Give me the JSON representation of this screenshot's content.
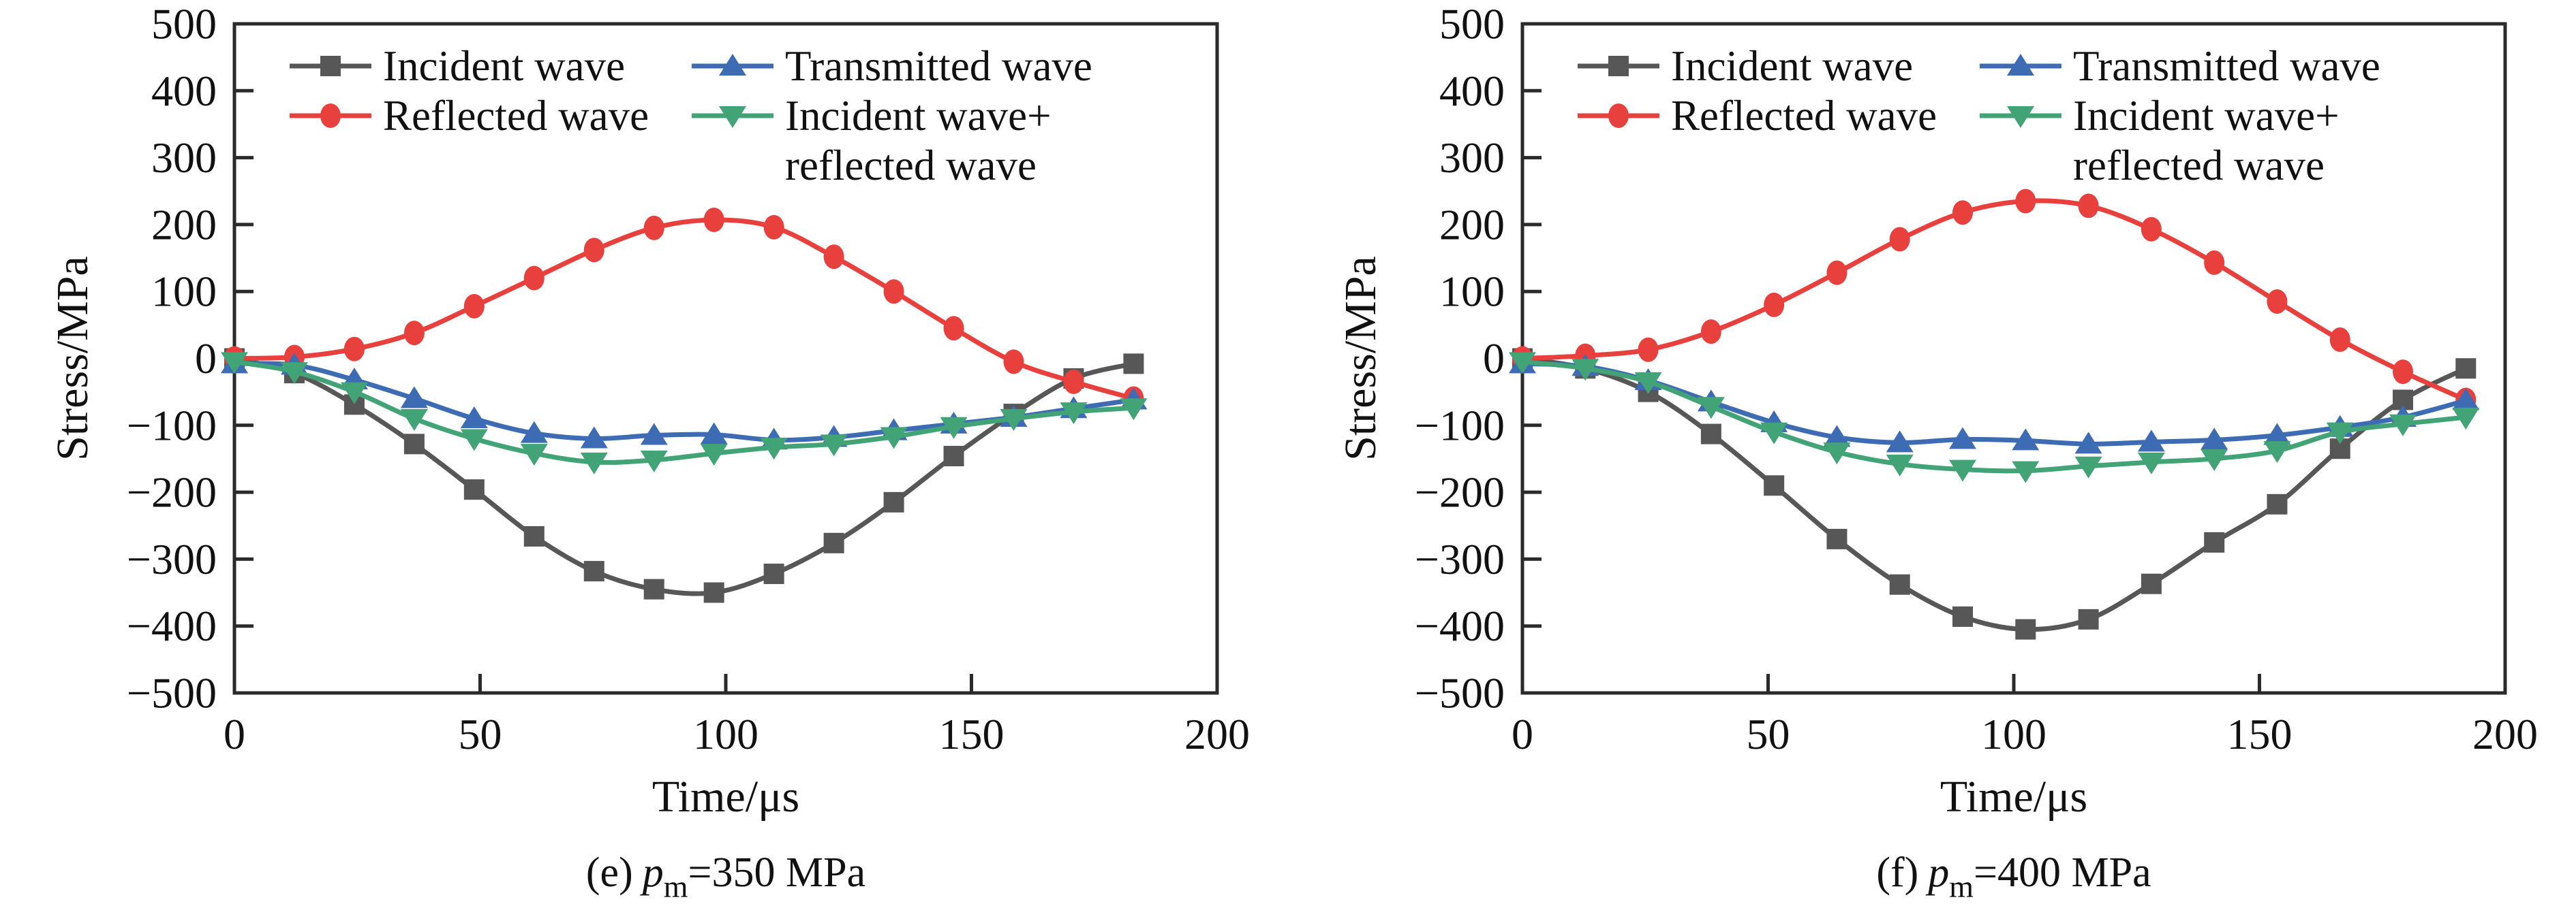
{
  "figure": {
    "background": "#ffffff",
    "frame_color": "#2a2a2a"
  },
  "chart_data": [
    {
      "type": "line",
      "caption": {
        "prefix": "(e)",
        "symbol": "p",
        "subscript": "m",
        "suffix": "=350 MPa"
      },
      "xlabel": "Time/μs",
      "ylabel": "Stress/MPa",
      "xlim": [
        0,
        200
      ],
      "ylim": [
        -500,
        500
      ],
      "grid": false,
      "legend_position": "top-inside-two-columns",
      "xticks": [
        {
          "v": 0,
          "label": "0"
        },
        {
          "v": 50,
          "label": "50"
        },
        {
          "v": 100,
          "label": "100"
        },
        {
          "v": 150,
          "label": "150"
        },
        {
          "v": 200,
          "label": "200"
        }
      ],
      "yticks": [
        {
          "v": 500,
          "label": "500"
        },
        {
          "v": 400,
          "label": "400"
        },
        {
          "v": 300,
          "label": "300"
        },
        {
          "v": 200,
          "label": "200"
        },
        {
          "v": 100,
          "label": "100"
        },
        {
          "v": 0,
          "label": "0"
        },
        {
          "v": -100,
          "label": "−100"
        },
        {
          "v": -200,
          "label": "−200"
        },
        {
          "v": -300,
          "label": "−300"
        },
        {
          "v": -400,
          "label": "−400"
        },
        {
          "v": -500,
          "label": "−500"
        }
      ],
      "x": [
        0,
        12.2,
        24.4,
        36.6,
        48.8,
        61,
        73.2,
        85.4,
        97.6,
        109.8,
        122,
        134.2,
        146.4,
        158.6,
        170.8,
        183
      ],
      "series": [
        {
          "name": "Incident wave",
          "slug": "incident-wave",
          "color": "#575757",
          "marker": "square",
          "values": [
            0,
            -22,
            -69,
            -128,
            -196,
            -266,
            -318,
            -345,
            -350,
            -322,
            -276,
            -215,
            -146,
            -83,
            -30,
            -8
          ]
        },
        {
          "name": "Reflected wave",
          "slug": "reflected-wave",
          "color": "#e8403d",
          "marker": "circle",
          "values": [
            0,
            2,
            14,
            38,
            78,
            120,
            162,
            195,
            207,
            196,
            152,
            100,
            45,
            -5,
            -35,
            -60
          ]
        },
        {
          "name": "Transmitted wave",
          "slug": "transmitted-wave",
          "color": "#3d6cb4",
          "marker": "triangle-up",
          "values": [
            -8,
            -10,
            -32,
            -60,
            -90,
            -112,
            -120,
            -115,
            -114,
            -122,
            -118,
            -108,
            -98,
            -88,
            -75,
            -62
          ]
        },
        {
          "name": "Incident wave+reflected wave",
          "slug": "incident-plus-reflected-wave",
          "color": "#41a376",
          "marker": "triangle-down",
          "legend_lines": [
            "Incident wave+",
            "reflected wave"
          ],
          "values": [
            -5,
            -20,
            -50,
            -90,
            -120,
            -142,
            -155,
            -152,
            -142,
            -133,
            -128,
            -117,
            -102,
            -90,
            -80,
            -74
          ]
        }
      ]
    },
    {
      "type": "line",
      "caption": {
        "prefix": "(f)",
        "symbol": "p",
        "subscript": "m",
        "suffix": "=400 MPa"
      },
      "xlabel": "Time/μs",
      "ylabel": "Stress/MPa",
      "xlim": [
        0,
        200
      ],
      "ylim": [
        -500,
        500
      ],
      "grid": false,
      "legend_position": "top-inside-two-columns",
      "xticks": [
        {
          "v": 0,
          "label": "0"
        },
        {
          "v": 50,
          "label": "50"
        },
        {
          "v": 100,
          "label": "100"
        },
        {
          "v": 150,
          "label": "150"
        },
        {
          "v": 200,
          "label": "200"
        }
      ],
      "yticks": [
        {
          "v": 500,
          "label": "500"
        },
        {
          "v": 400,
          "label": "400"
        },
        {
          "v": 300,
          "label": "300"
        },
        {
          "v": 200,
          "label": "200"
        },
        {
          "v": 100,
          "label": "100"
        },
        {
          "v": 0,
          "label": "0"
        },
        {
          "v": -100,
          "label": "−100"
        },
        {
          "v": -200,
          "label": "−200"
        },
        {
          "v": -300,
          "label": "−300"
        },
        {
          "v": -400,
          "label": "−400"
        },
        {
          "v": -500,
          "label": "−500"
        }
      ],
      "x": [
        0,
        12.8,
        25.6,
        38.4,
        51.2,
        64,
        76.8,
        89.6,
        102.4,
        115.2,
        128,
        140.8,
        153.6,
        166.4,
        179.2,
        192
      ],
      "series": [
        {
          "name": "Incident wave",
          "slug": "incident-wave",
          "color": "#575757",
          "marker": "square",
          "values": [
            0,
            -15,
            -50,
            -113,
            -190,
            -270,
            -338,
            -386,
            -405,
            -390,
            -337,
            -275,
            -218,
            -135,
            -62,
            -15
          ]
        },
        {
          "name": "Reflected wave",
          "slug": "reflected-wave",
          "color": "#e8403d",
          "marker": "circle",
          "values": [
            0,
            4,
            13,
            40,
            80,
            128,
            178,
            218,
            235,
            228,
            193,
            143,
            85,
            28,
            -20,
            -62
          ]
        },
        {
          "name": "Transmitted wave",
          "slug": "transmitted-wave",
          "color": "#3d6cb4",
          "marker": "triangle-up",
          "values": [
            -8,
            -12,
            -33,
            -65,
            -96,
            -118,
            -126,
            -121,
            -123,
            -128,
            -125,
            -122,
            -115,
            -103,
            -88,
            -63
          ]
        },
        {
          "name": "Incident wave+reflected wave",
          "slug": "incident-plus-reflected-wave",
          "color": "#41a376",
          "marker": "triangle-down",
          "legend_lines": [
            "Incident wave+",
            "reflected wave"
          ],
          "values": [
            -5,
            -15,
            -35,
            -72,
            -110,
            -140,
            -158,
            -166,
            -168,
            -161,
            -155,
            -150,
            -138,
            -110,
            -98,
            -88
          ]
        }
      ]
    }
  ]
}
